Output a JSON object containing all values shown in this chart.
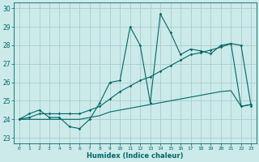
{
  "xlabel": "Humidex (Indice chaleur)",
  "bg_color": "#cceaea",
  "line_color": "#006666",
  "grid_color": "#aacccc",
  "xlim": [
    -0.5,
    23.5
  ],
  "ylim": [
    22.7,
    30.3
  ],
  "xticks": [
    0,
    1,
    2,
    3,
    4,
    5,
    6,
    7,
    8,
    9,
    10,
    11,
    12,
    13,
    14,
    15,
    16,
    17,
    18,
    19,
    20,
    21,
    22,
    23
  ],
  "yticks": [
    23,
    24,
    25,
    26,
    27,
    28,
    29,
    30
  ],
  "series1_x": [
    0,
    1,
    2,
    3,
    4,
    5,
    6,
    7,
    8,
    9,
    10,
    11,
    12,
    13,
    14,
    15,
    16,
    17,
    18,
    19,
    20,
    21,
    22,
    23
  ],
  "series1_y": [
    24.0,
    24.3,
    24.5,
    24.1,
    24.1,
    23.6,
    23.5,
    24.0,
    24.9,
    26.0,
    26.1,
    29.0,
    28.0,
    24.9,
    29.7,
    28.7,
    27.5,
    27.8,
    27.7,
    27.55,
    28.0,
    28.1,
    24.7,
    24.8
  ],
  "series2_x": [
    0,
    1,
    2,
    3,
    4,
    5,
    6,
    7,
    8,
    9,
    10,
    11,
    12,
    13,
    14,
    15,
    16,
    17,
    18,
    19,
    20,
    21,
    22,
    23
  ],
  "series2_y": [
    24.0,
    24.1,
    24.3,
    24.3,
    24.3,
    24.3,
    24.3,
    24.5,
    24.7,
    25.1,
    25.5,
    25.8,
    26.1,
    26.3,
    26.6,
    26.9,
    27.2,
    27.5,
    27.6,
    27.75,
    27.9,
    28.1,
    28.0,
    24.7
  ],
  "series3_x": [
    0,
    1,
    2,
    3,
    4,
    5,
    6,
    7,
    8,
    9,
    10,
    11,
    12,
    13,
    14,
    15,
    16,
    17,
    18,
    19,
    20,
    21,
    22,
    23
  ],
  "series3_y": [
    24.0,
    24.0,
    24.0,
    24.0,
    24.0,
    24.0,
    24.0,
    24.1,
    24.2,
    24.4,
    24.5,
    24.6,
    24.7,
    24.8,
    24.9,
    25.0,
    25.1,
    25.2,
    25.3,
    25.4,
    25.5,
    25.55,
    24.7,
    24.8
  ]
}
